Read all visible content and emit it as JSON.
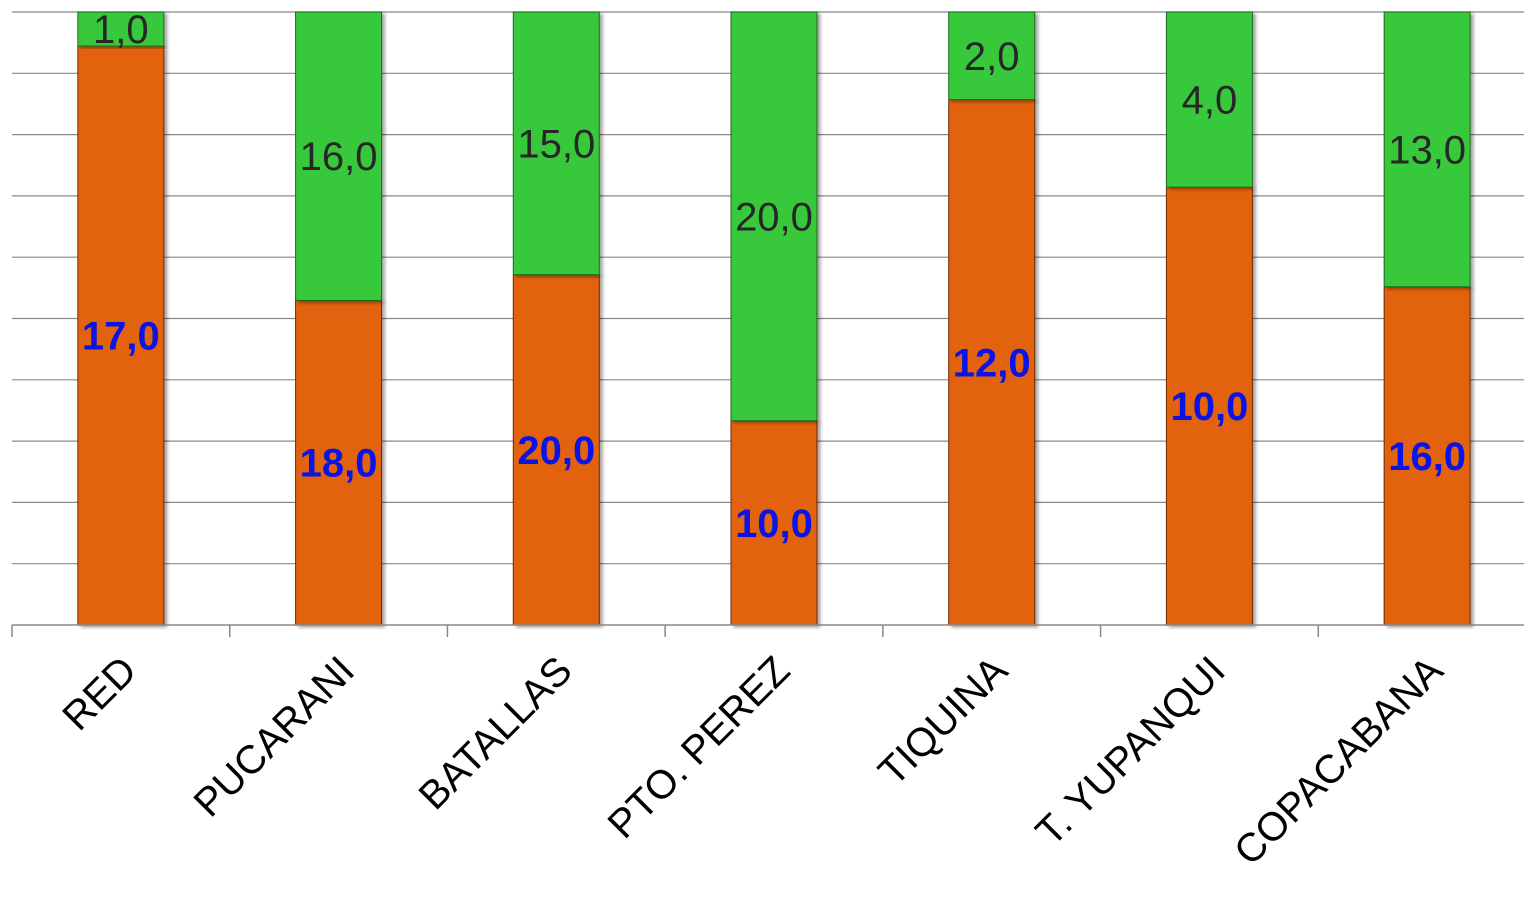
{
  "chart_data": {
    "type": "bar",
    "stacked": true,
    "categories": [
      "RED",
      "PUCARANI",
      "BATALLAS",
      "PTO. PEREZ",
      "TIQUINA",
      "T. YUPANQUI",
      "COPACABANA"
    ],
    "series": [
      {
        "values": [
          17.0,
          18.0,
          20.0,
          10.0,
          12.0,
          10.0,
          16.0
        ],
        "labels": [
          "17,0",
          "18,0",
          "20,0",
          "10,0",
          "12,0",
          "10,0",
          "16,0"
        ],
        "color": "#E36210",
        "label_color": "#0A14E6"
      },
      {
        "values": [
          1.0,
          16.0,
          15.0,
          20.0,
          2.0,
          4.0,
          13.0
        ],
        "labels": [
          "1,0",
          "16,0",
          "15,0",
          "20,0",
          "2,0",
          "4,0",
          "13,0"
        ],
        "color": "#38C83A",
        "label_color": "#262626"
      }
    ],
    "normalized_percent": true,
    "ylim": [
      0,
      100
    ],
    "grid": true,
    "gridline_color": "#888888",
    "legend": "none"
  }
}
